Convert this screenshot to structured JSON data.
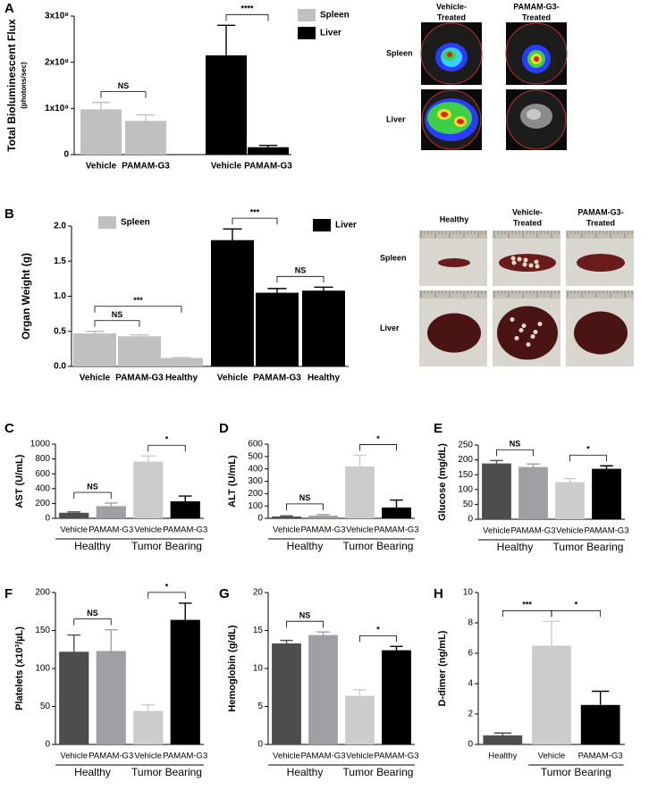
{
  "chart_data": [
    {
      "type": "bar",
      "panel": "A",
      "y_label": "Total Bioluminescent Flux",
      "y_label_sub": "(photons/sec)",
      "categories": [
        "Vehicle",
        "PAMAM-G3",
        "Vehicle",
        "PAMAM-G3"
      ],
      "series": [
        {
          "name": "Spleen",
          "color": "#c0c0c0",
          "values": [
            98000000,
            73000000,
            null,
            null
          ],
          "errors": [
            15000000,
            13000000,
            null,
            null
          ]
        },
        {
          "name": "Liver",
          "color": "#000000",
          "values": [
            null,
            null,
            215000000,
            16000000
          ],
          "errors": [
            null,
            null,
            65000000,
            4000000
          ]
        }
      ],
      "ylim": [
        0,
        300000000
      ],
      "yticks": [
        0,
        {
          "value": 100000000,
          "label": "1x10⁸"
        },
        {
          "value": 200000000,
          "label": "2x10⁸"
        },
        {
          "value": 300000000,
          "label": "3x10⁸"
        }
      ],
      "comparisons": [
        {
          "label": "NS",
          "bars": [
            0,
            1
          ]
        },
        {
          "label": "****",
          "bars": [
            2,
            3
          ]
        }
      ]
    },
    {
      "type": "bar",
      "panel": "B",
      "y_label": "Organ Weight (g)",
      "categories": [
        "Vehicle",
        "PAMAM-G3",
        "Healthy",
        "Vehicle",
        "PAMAM-G3",
        "Healthy"
      ],
      "series": [
        {
          "name": "Spleen",
          "color": "#c0c0c0",
          "values": [
            0.47,
            0.43,
            0.12,
            null,
            null,
            null
          ],
          "errors": [
            0.03,
            0.02,
            0.005,
            null,
            null,
            null
          ]
        },
        {
          "name": "Liver",
          "color": "#000000",
          "values": [
            null,
            null,
            null,
            1.8,
            1.05,
            1.08
          ],
          "errors": [
            null,
            null,
            null,
            0.16,
            0.06,
            0.05
          ]
        }
      ],
      "ylim": [
        0,
        2
      ],
      "yticks": [
        {
          "value": 0,
          "label": "0.0"
        },
        0.5,
        {
          "value": 1,
          "label": "1.0"
        },
        1.5,
        {
          "value": 2,
          "label": "2.0"
        }
      ],
      "comparisons": [
        {
          "label": "NS",
          "bars": [
            0,
            1
          ]
        },
        {
          "label": "***",
          "bars": [
            0,
            2
          ]
        },
        {
          "label": "NS",
          "bars": [
            4,
            5
          ]
        },
        {
          "label": "***",
          "bars": [
            3,
            4
          ]
        }
      ]
    },
    {
      "type": "bar",
      "panel": "C",
      "y_label": "AST (U/mL)",
      "categories": [
        "Vehicle",
        "PAMAM-G3",
        "Vehicle",
        "PAMAM-G3"
      ],
      "values": [
        75,
        165,
        765,
        230
      ],
      "errors": [
        12,
        40,
        75,
        70
      ],
      "colors": [
        "#4d4d4d",
        "#a0a0a4",
        "#cccccc",
        "#000000"
      ],
      "ylim": [
        0,
        1000
      ],
      "yticks": [
        0,
        200,
        400,
        600,
        800,
        1000
      ],
      "groups": [
        {
          "label": "Healthy",
          "bars": [
            0,
            1
          ]
        },
        {
          "label": "Tumor Bearing",
          "bars": [
            2,
            3
          ]
        }
      ],
      "comparisons": [
        {
          "label": "NS",
          "bars": [
            0,
            1
          ]
        },
        {
          "label": "*",
          "bars": [
            2,
            3
          ]
        }
      ]
    },
    {
      "type": "bar",
      "panel": "D",
      "y_label": "ALT (U/mL)",
      "categories": [
        "Vehicle",
        "PAMAM-G3",
        "Vehicle",
        "PAMAM-G3"
      ],
      "values": [
        15,
        22,
        420,
        88
      ],
      "errors": [
        5,
        8,
        90,
        60
      ],
      "colors": [
        "#4d4d4d",
        "#a0a0a4",
        "#cccccc",
        "#000000"
      ],
      "ylim": [
        0,
        600
      ],
      "yticks": [
        0,
        100,
        200,
        300,
        400,
        500,
        600
      ],
      "groups": [
        {
          "label": "Healthy",
          "bars": [
            0,
            1
          ]
        },
        {
          "label": "Tumor Bearing",
          "bars": [
            2,
            3
          ]
        }
      ],
      "comparisons": [
        {
          "label": "NS",
          "bars": [
            0,
            1
          ]
        },
        {
          "label": "*",
          "bars": [
            2,
            3
          ]
        }
      ]
    },
    {
      "type": "bar",
      "panel": "E",
      "y_label": "Glucose (mg/dL)",
      "categories": [
        "Vehicle",
        "PAMAM-G3",
        "Vehicle",
        "PAMAM-G3"
      ],
      "values": [
        188,
        176,
        125,
        170
      ],
      "errors": [
        10,
        10,
        12,
        10
      ],
      "colors": [
        "#4d4d4d",
        "#a0a0a4",
        "#cccccc",
        "#000000"
      ],
      "ylim": [
        0,
        250
      ],
      "yticks": [
        0,
        50,
        100,
        150,
        200,
        250
      ],
      "groups": [
        {
          "label": "Healthy",
          "bars": [
            0,
            1
          ]
        },
        {
          "label": "Tumor Bearing",
          "bars": [
            2,
            3
          ]
        }
      ],
      "comparisons": [
        {
          "label": "NS",
          "bars": [
            0,
            1
          ]
        },
        {
          "label": "*",
          "bars": [
            2,
            3
          ]
        }
      ]
    },
    {
      "type": "bar",
      "panel": "F",
      "y_label": "Platelets (x10³/µL)",
      "categories": [
        "Vehicle",
        "PAMAM-G3",
        "Vehicle",
        "PAMAM-G3"
      ],
      "values": [
        122,
        123,
        44,
        164
      ],
      "errors": [
        22,
        28,
        8,
        22
      ],
      "colors": [
        "#4d4d4d",
        "#a0a0a4",
        "#cccccc",
        "#000000"
      ],
      "ylim": [
        0,
        200
      ],
      "yticks": [
        0,
        50,
        100,
        150,
        200
      ],
      "groups": [
        {
          "label": "Healthy",
          "bars": [
            0,
            1
          ]
        },
        {
          "label": "Tumor Bearing",
          "bars": [
            2,
            3
          ]
        }
      ],
      "comparisons": [
        {
          "label": "NS",
          "bars": [
            0,
            1
          ]
        },
        {
          "label": "*",
          "bars": [
            2,
            3
          ]
        }
      ]
    },
    {
      "type": "bar",
      "panel": "G",
      "y_label": "Hemoglobin (g/dL)",
      "categories": [
        "Vehicle",
        "PAMAM-G3",
        "Vehicle",
        "PAMAM-G3"
      ],
      "values": [
        13.3,
        14.4,
        6.4,
        12.4
      ],
      "errors": [
        0.4,
        0.4,
        0.8,
        0.5
      ],
      "colors": [
        "#4d4d4d",
        "#a0a0a4",
        "#cccccc",
        "#000000"
      ],
      "ylim": [
        0,
        20
      ],
      "yticks": [
        0,
        5,
        10,
        15,
        20
      ],
      "groups": [
        {
          "label": "Healthy",
          "bars": [
            0,
            1
          ]
        },
        {
          "label": "Tumor Bearing",
          "bars": [
            2,
            3
          ]
        }
      ],
      "comparisons": [
        {
          "label": "NS",
          "bars": [
            0,
            1
          ]
        },
        {
          "label": "*",
          "bars": [
            2,
            3
          ]
        }
      ]
    },
    {
      "type": "bar",
      "panel": "H",
      "y_label": "D-dimer (ng/mL)",
      "categories": [
        "Healthy",
        "Vehicle",
        "PAMAM-G3"
      ],
      "values": [
        0.6,
        6.5,
        2.6
      ],
      "errors": [
        0.15,
        1.6,
        0.9
      ],
      "colors": [
        "#4d4d4d",
        "#cccccc",
        "#000000"
      ],
      "ylim": [
        0,
        10
      ],
      "yticks": [
        0,
        2,
        4,
        6,
        8,
        10
      ],
      "groups": [
        {
          "label": "Tumor Bearing",
          "bars": [
            1,
            2
          ]
        }
      ],
      "comparisons": [
        {
          "label": "***",
          "bars": [
            0,
            1
          ]
        },
        {
          "label": "*",
          "bars": [
            1,
            2
          ]
        }
      ]
    }
  ],
  "photo_panels": [
    {
      "columns": [
        [
          "Vehicle-",
          "Treated"
        ],
        [
          "PAMAM-G3-",
          "Treated"
        ]
      ],
      "rows": [
        "Spleen",
        "Liver"
      ]
    },
    {
      "columns": [
        [
          "Healthy"
        ],
        [
          "Vehicle-",
          "Treated"
        ],
        [
          "PAMAM-G3-",
          "Treated"
        ]
      ],
      "rows": [
        "Spleen",
        "Liver"
      ]
    }
  ]
}
